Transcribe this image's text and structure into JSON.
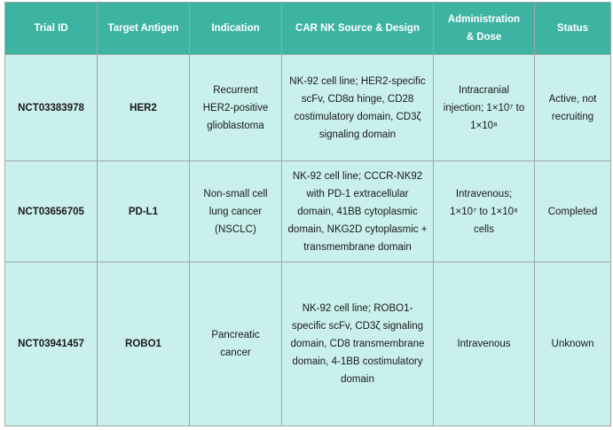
{
  "table": {
    "headers": [
      "Trial ID",
      "Target Antigen",
      "Indication",
      "CAR NK Source & Design",
      "Administration & Dose",
      "Status"
    ],
    "rows": [
      {
        "trial_id": "NCT03383978",
        "target_antigen": "HER2",
        "indication": "Recurrent HER2-positive glioblastoma",
        "design": "NK-92 cell line; HER2-specific scFv, CD8α hinge, CD28 costimulatory domain, CD3ζ signaling domain",
        "admin": "Intracranial injection; 1×10⁷ to 1×10⁸",
        "status": "Active, not recruiting"
      },
      {
        "trial_id": "NCT03656705",
        "target_antigen": "PD-L1",
        "indication": "Non-small cell lung cancer (NSCLC)",
        "design": "NK-92 cell line; CCCR-NK92 with PD-1 extracellular domain, 41BB cytoplasmic domain, NKG2D cytoplasmic + transmembrane domain",
        "admin": "Intravenous; 1×10⁷ to 1×10⁸ cells",
        "status": "Completed"
      },
      {
        "trial_id": "NCT03941457",
        "target_antigen": "ROBO1",
        "indication": "Pancreatic cancer",
        "design": "NK-92 cell line; ROBO1-specific scFv, CD3ζ signaling domain, CD8 transmembrane domain, 4-1BB costimulatory domain",
        "admin": "Intravenous",
        "status": "Unknown"
      }
    ]
  },
  "colors": {
    "header_bg": "#3db3a2",
    "cell_bg": "#c9f0ec",
    "border": "#9ea7a8"
  }
}
